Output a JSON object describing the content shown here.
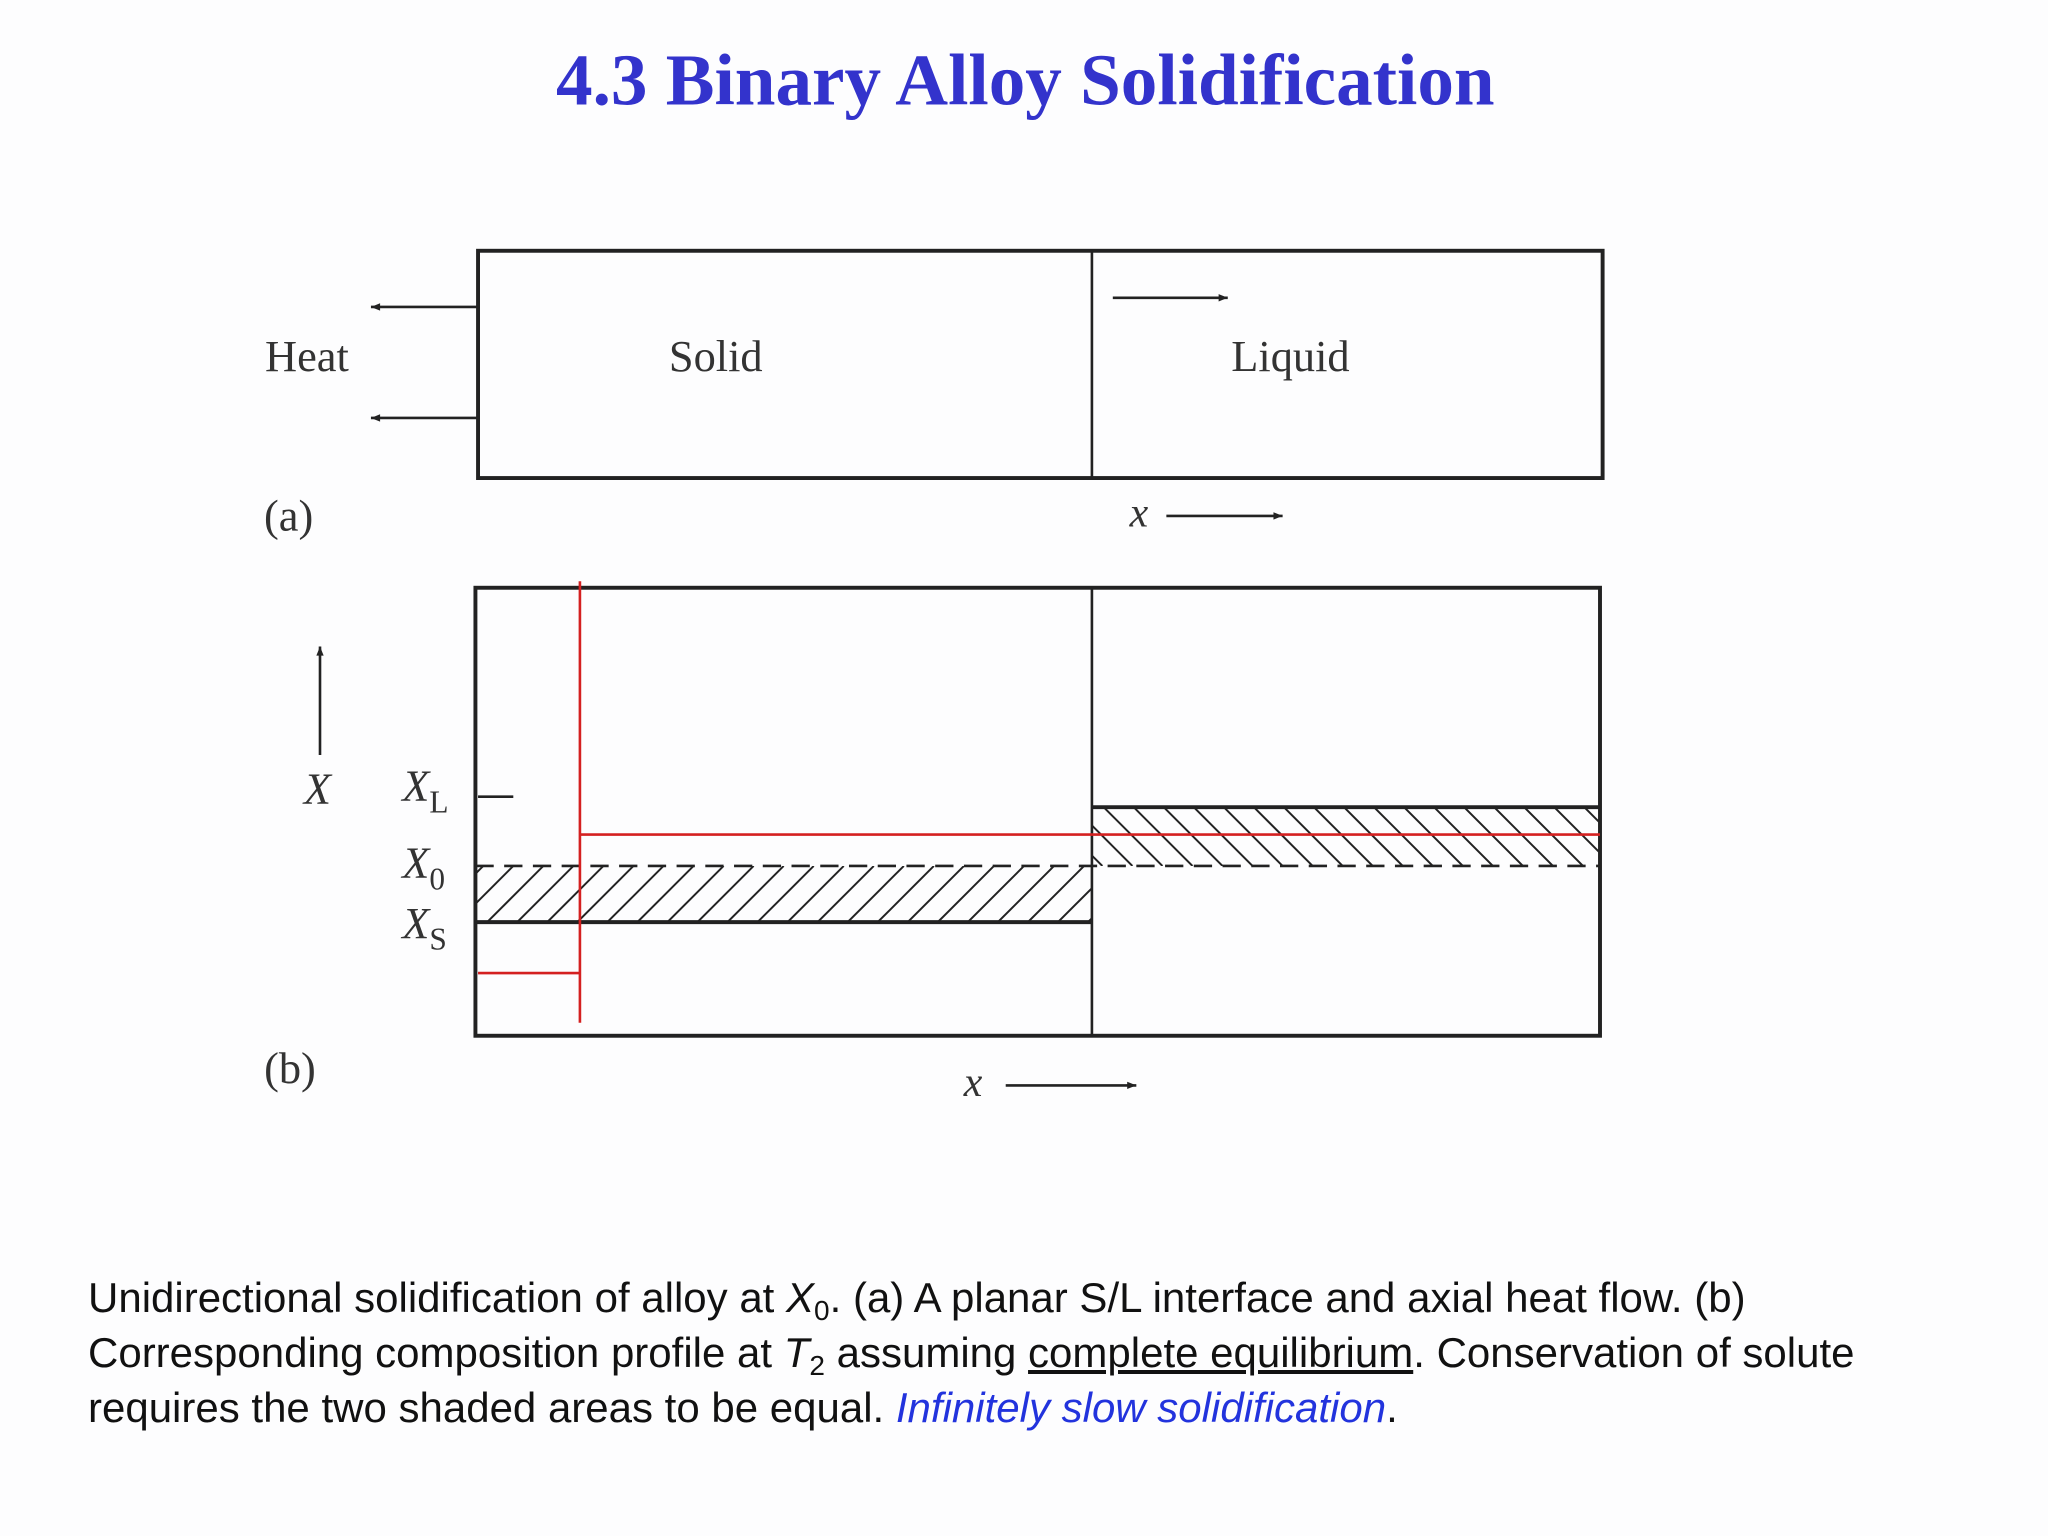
{
  "header": {
    "title": "4.3 Binary Alloy Solidification"
  },
  "diagram_a": {
    "heat": "Heat",
    "solid": "Solid",
    "liquid": "Liquid",
    "panel": "(a)",
    "axis": "x"
  },
  "diagram_b": {
    "y_axis": "X",
    "xl": {
      "main": "X",
      "sub": "L"
    },
    "x0": {
      "main": "X",
      "sub": "0"
    },
    "xs": {
      "main": "X",
      "sub": "S"
    },
    "panel": "(b)",
    "axis": "x"
  },
  "caption": {
    "part1": "Unidirectional solidification of alloy at ",
    "x": "X",
    "x_sub": "0",
    "part2": ". (a) A planar S/L interface and axial heat flow. (b) Corresponding composition profile at ",
    "t": "T",
    "t_sub": "2",
    "part3": " assuming ",
    "underlined": "complete equilibrium",
    "part4": ". Conservation of solute requires the two shaded areas to be equal. ",
    "highlight": "Infinitely slow solidification",
    "end": "."
  }
}
